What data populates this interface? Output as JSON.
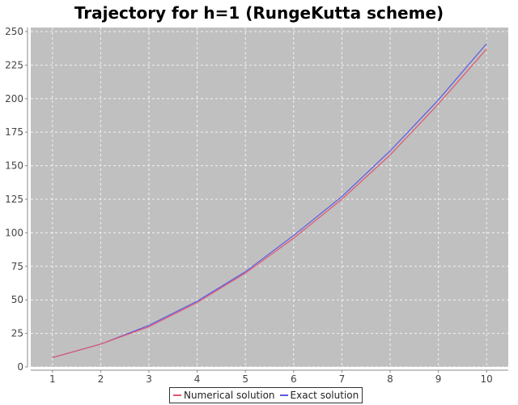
{
  "chart_data": {
    "type": "line",
    "title": "Trajectory for h=1 (RungeKutta scheme)",
    "xlabel": "",
    "ylabel": "",
    "x": [
      1,
      2,
      3,
      4,
      5,
      6,
      7,
      8,
      9,
      10
    ],
    "xlim": [
      0.55,
      10.45
    ],
    "ylim": [
      0,
      253
    ],
    "x_ticks": [
      1,
      2,
      3,
      4,
      5,
      6,
      7,
      8,
      9,
      10
    ],
    "y_ticks": [
      0,
      25,
      50,
      75,
      100,
      125,
      150,
      175,
      200,
      225,
      250
    ],
    "grid": true,
    "legend_position": "bottom",
    "plot_background": "#c0c0c0",
    "series": [
      {
        "name": "Numerical solution",
        "color": "#e0566e",
        "values": [
          7,
          17,
          30,
          48,
          70,
          96,
          125,
          158,
          196,
          237
        ]
      },
      {
        "name": "Exact solution",
        "color": "#5a5ae6",
        "values": [
          7,
          17,
          31,
          49,
          71,
          98,
          127,
          161,
          199,
          241
        ]
      }
    ]
  }
}
